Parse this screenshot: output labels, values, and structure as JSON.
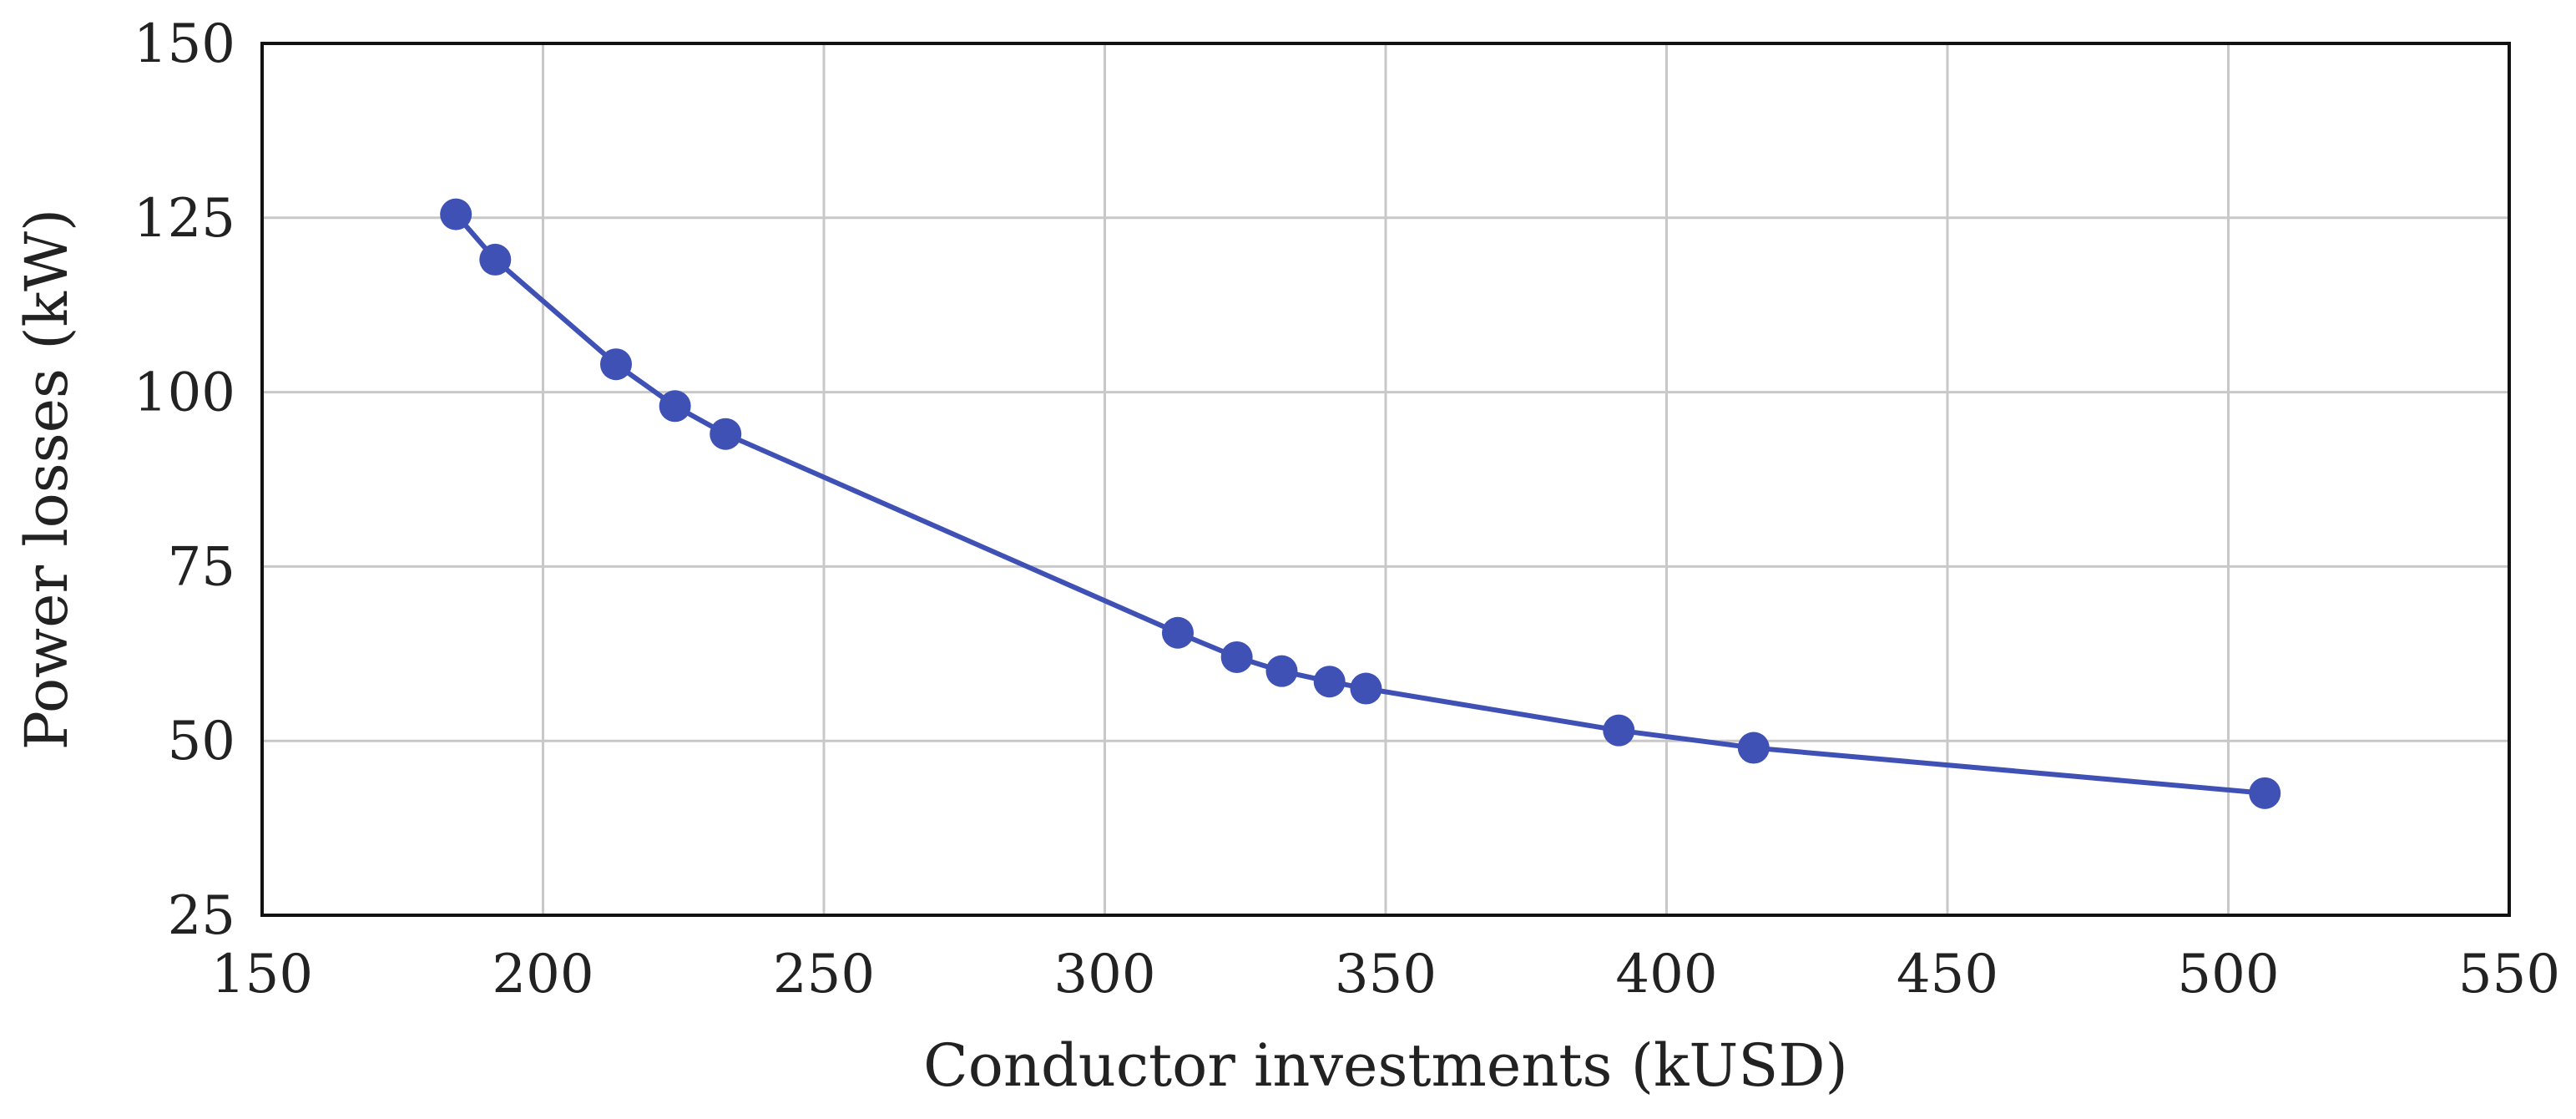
{
  "chart_data": {
    "type": "line",
    "title": "",
    "xlabel": "Conductor investments (kUSD)",
    "ylabel": "Power losses (kW)",
    "xlim": [
      150,
      550
    ],
    "ylim": [
      25,
      150
    ],
    "xticks": [
      150,
      200,
      250,
      300,
      350,
      400,
      450,
      500,
      550
    ],
    "yticks": [
      25,
      50,
      75,
      100,
      125,
      150
    ],
    "grid": true,
    "legend": "none",
    "color": "#3F51B5",
    "series": [
      {
        "x": [
          184.5,
          191.5,
          213,
          223.5,
          232.5,
          313,
          323.5,
          331.5,
          340,
          346.5,
          391.5,
          415.5,
          506.5
        ],
        "y": [
          125.5,
          119,
          104,
          98,
          94,
          65.5,
          62,
          60,
          58.5,
          57.5,
          51.5,
          49,
          42.5
        ]
      }
    ]
  }
}
